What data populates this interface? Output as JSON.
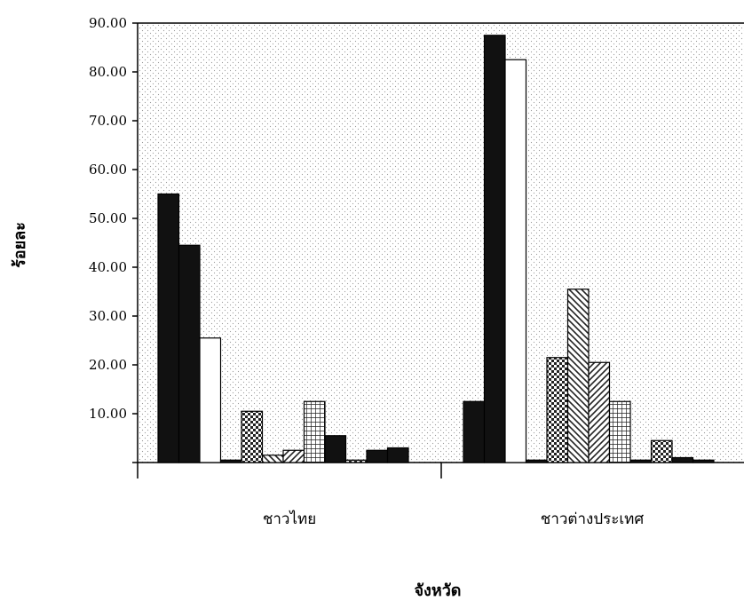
{
  "chart_data": {
    "type": "bar",
    "title": "",
    "xlabel": "จังหวัด",
    "ylabel": "ร้อยละ",
    "ylim": [
      0,
      90
    ],
    "yticks": [
      "",
      "10.00",
      "20.00",
      "30.00",
      "40.00",
      "50.00",
      "60.00",
      "70.00",
      "80.00",
      "90.00"
    ],
    "grid": false,
    "legend": "none",
    "categories": [
      "ชาวไทย",
      "ชาวต่างประเทศ"
    ],
    "series": [
      {
        "values": [
          55.0,
          12.5
        ],
        "pattern": "solid",
        "color": "#111111"
      },
      {
        "values": [
          44.5,
          87.5
        ],
        "pattern": "solid",
        "color": "#111111"
      },
      {
        "values": [
          25.5,
          82.5
        ],
        "pattern": "white",
        "color": "#ffffff"
      },
      {
        "values": [
          0.5,
          0.5
        ],
        "pattern": "solid",
        "color": "#111111"
      },
      {
        "values": [
          10.5,
          21.5
        ],
        "pattern": "checker",
        "color": "#222222"
      },
      {
        "values": [
          1.5,
          35.5
        ],
        "pattern": "diag-back",
        "color": "#222222"
      },
      {
        "values": [
          2.5,
          20.5
        ],
        "pattern": "diag-fwd",
        "color": "#222222"
      },
      {
        "values": [
          12.5,
          12.5
        ],
        "pattern": "grid",
        "color": "#222222"
      },
      {
        "values": [
          5.5,
          0.5
        ],
        "pattern": "solid",
        "color": "#111111"
      },
      {
        "values": [
          0.5,
          4.5
        ],
        "pattern": "checker",
        "color": "#222222"
      },
      {
        "values": [
          2.5,
          1.0
        ],
        "pattern": "solid",
        "color": "#111111"
      },
      {
        "values": [
          3.0,
          0.5
        ],
        "pattern": "solid",
        "color": "#111111"
      }
    ]
  }
}
